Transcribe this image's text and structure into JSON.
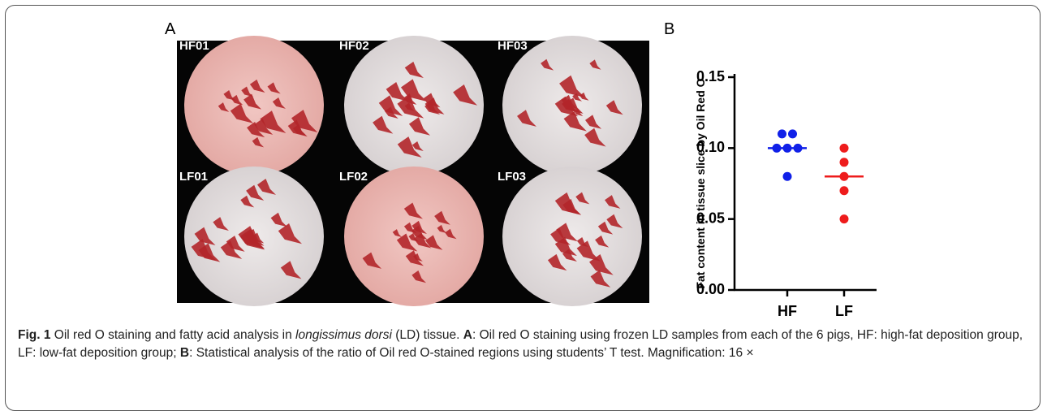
{
  "panel_a": {
    "label": "A",
    "images": [
      {
        "label": "HF01"
      },
      {
        "label": "HF02"
      },
      {
        "label": "HF03"
      },
      {
        "label": "LF01"
      },
      {
        "label": "LF02"
      },
      {
        "label": "LF03"
      }
    ]
  },
  "chart_data": {
    "type": "dot",
    "panel_label": "B",
    "y_label": "Fat content in tissue slice by Oil Red O",
    "categories": [
      "HF",
      "LF"
    ],
    "groups": [
      {
        "color": "#1020e8",
        "values": [
          0.11,
          0.11,
          0.1,
          0.1,
          0.1,
          0.08
        ],
        "median": 0.1
      },
      {
        "color": "#ee1c1c",
        "values": [
          0.1,
          0.09,
          0.08,
          0.07,
          0.05
        ],
        "median": 0.08
      }
    ],
    "ylim": [
      0,
      0.15
    ],
    "yticks": [
      {
        "value": 0,
        "label": "0.00"
      },
      0.05,
      {
        "value": 0.1,
        "label": "0.10"
      },
      0.15
    ]
  },
  "caption": {
    "label": "Fig. 1",
    "parts": [
      " Oil red O staining and fatty acid analysis in ",
      "longissimus dorsi",
      " (LD) tissue. ",
      "A",
      ": Oil red O staining using frozen LD samples from each of the 6 pigs, HF: high-fat deposition group, LF: low-fat deposition group; ",
      "B",
      ": Statistical analysis of the ratio of Oil red O-stained regions using students’ T test. Magnification: 16 ×"
    ]
  }
}
